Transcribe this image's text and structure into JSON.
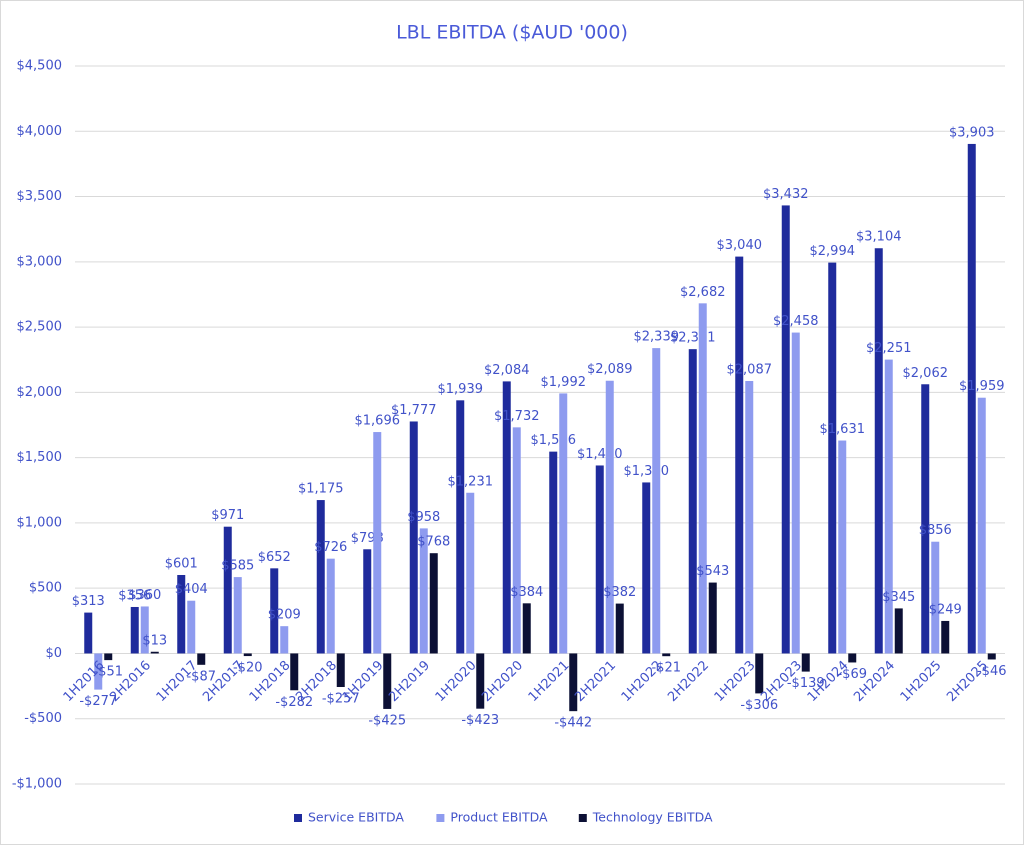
{
  "chart_data": {
    "type": "bar",
    "title": "LBL EBITDA ($AUD '000)",
    "categories": [
      "1H2016",
      "2H2016",
      "1H2017",
      "2H2017",
      "1H2018",
      "2H2018",
      "1H2019",
      "2H2019",
      "1H2020",
      "2H2020",
      "1H2021",
      "2H2021",
      "1H2022",
      "2H2022",
      "1H2023",
      "2H2023",
      "1H2024",
      "2H2024",
      "1H2025",
      "2H2025"
    ],
    "series": [
      {
        "name": "Service EBITDA",
        "color": "#1f2b9c",
        "values": [
          313,
          356,
          601,
          971,
          652,
          1175,
          798,
          1777,
          1939,
          2084,
          1546,
          1440,
          1310,
          2331,
          3040,
          3432,
          2994,
          3104,
          2062,
          3903
        ],
        "value_labels": [
          "$313",
          "$356",
          "$601",
          "$971",
          "$652",
          "$1,175",
          "$798",
          "$1,777",
          "$1,939",
          "$2,084",
          "$1,546",
          "$1,440",
          "$1,310",
          "$2,331",
          "$3,040",
          "$3,432",
          "$2,994",
          "$3,104",
          "$2,062",
          "$3,903"
        ]
      },
      {
        "name": "Product EBITDA",
        "color": "#8e9bef",
        "values": [
          -277,
          360,
          404,
          585,
          209,
          726,
          1696,
          958,
          1231,
          1732,
          1992,
          2089,
          2339,
          2682,
          2087,
          2458,
          1631,
          2251,
          856,
          1959
        ],
        "value_labels": [
          "-$277",
          "$360",
          "$404",
          "$585",
          "$209",
          "$726",
          "$1,696",
          "$958",
          "$1,231",
          "$1,732",
          "$1,992",
          "$2,089",
          "$2,339",
          "$2,682",
          "$2,087",
          "$2,458",
          "$1,631",
          "$2,251",
          "$856",
          "$1,959"
        ]
      },
      {
        "name": "Technology EBITDA",
        "color": "#0c1035",
        "values": [
          -51,
          13,
          -87,
          -20,
          -282,
          -257,
          -425,
          768,
          -423,
          384,
          -442,
          382,
          -21,
          543,
          -306,
          -139,
          -69,
          345,
          249,
          -46
        ],
        "value_labels": [
          "-$51",
          "$13",
          "-$87",
          "-$20",
          "-$282",
          "-$257",
          "-$425",
          "$768",
          "-$423",
          "$384",
          "-$442",
          "$382",
          "-$21",
          "$543",
          "-$306",
          "-$139",
          "-$69",
          "$345",
          "$249",
          "-$46"
        ]
      }
    ],
    "ylim": [
      -1000,
      4500
    ],
    "yticks": [
      {
        "value": -1000,
        "label": "-$1,000"
      },
      {
        "value": -500,
        "label": "-$500"
      },
      {
        "value": 0,
        "label": "$0"
      },
      {
        "value": 500,
        "label": "$500"
      },
      {
        "value": 1000,
        "label": "$1,000"
      },
      {
        "value": 1500,
        "label": "$1,500"
      },
      {
        "value": 2000,
        "label": "$2,000"
      },
      {
        "value": 2500,
        "label": "$2,500"
      },
      {
        "value": 3000,
        "label": "$3,000"
      },
      {
        "value": 3500,
        "label": "$3,500"
      },
      {
        "value": 4000,
        "label": "$4,000"
      },
      {
        "value": 4500,
        "label": "$4,500"
      }
    ],
    "grid": true,
    "legend": "bottom"
  }
}
